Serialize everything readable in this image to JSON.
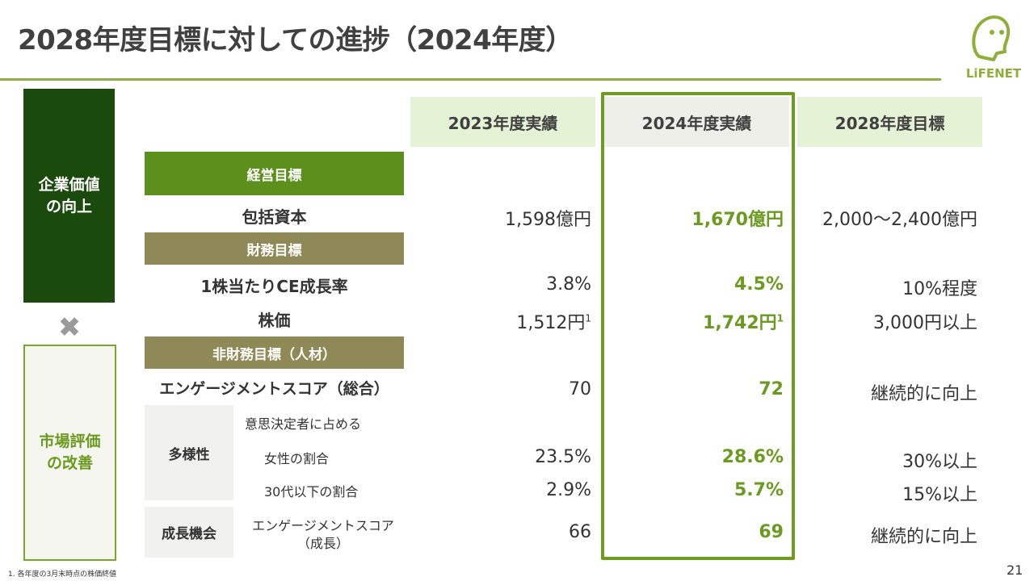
{
  "page": {
    "title": "2028年度目標に対しての進捗（2024年度）",
    "page_number": "21",
    "footnote": "1.  各年度の3月末時点の株価終値"
  },
  "logo": {
    "text": "LiFENET"
  },
  "sidebar": {
    "top_label": "企業価値の向上",
    "bottom_label": "市場評価の改善",
    "multiply_symbol": "✖"
  },
  "columns": [
    "2023年度実績",
    "2024年度実績",
    "2028年度目標"
  ],
  "sections": {
    "management": "経営目標",
    "financial": "財務目標",
    "non_financial": "非財務目標（人材）"
  },
  "rows": {
    "capital": {
      "label": "包括資本",
      "v2023": "1,598億円",
      "v2024": "1,670億円",
      "v2028": "2,000～2,400億円"
    },
    "ce_growth": {
      "label": "1株当たりCE成長率",
      "v2023": "3.8%",
      "v2024": "4.5%",
      "v2028": "10%程度"
    },
    "stock": {
      "label": "株価",
      "v2023": "1,512円",
      "v2024": "1,742円",
      "sup": "1",
      "v2028": "3,000円以上"
    },
    "engagement": {
      "label": "エンゲージメントスコア（総合）",
      "v2023": "70",
      "v2024": "72",
      "v2028": "継続的に向上"
    },
    "diversity": {
      "group": "多様性",
      "header": "意思決定者に占める",
      "women": {
        "label": "女性の割合",
        "v2023": "23.5%",
        "v2024": "28.6%",
        "v2028": "30%以上"
      },
      "under30": {
        "label": "30代以下の割合",
        "v2023": "2.9%",
        "v2024": "5.7%",
        "v2028": "15%以上"
      }
    },
    "growth": {
      "group": "成長機会",
      "label_line1": "エンゲージメントスコア",
      "label_line2": "（成長）",
      "v2023": "66",
      "v2024": "69",
      "v2028": "継続的に向上"
    }
  },
  "colors": {
    "accent": "#6a9a1f",
    "dark_green": "#1a4a0c",
    "olive": "#8f8957"
  }
}
